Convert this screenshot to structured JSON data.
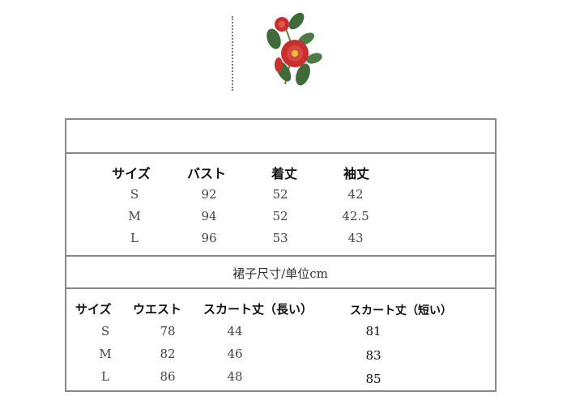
{
  "top_table": {
    "headers": [
      "サイズ",
      "バスト",
      "着丈",
      "袖丈"
    ],
    "rows": [
      [
        "S",
        "92",
        "52",
        "42"
      ],
      [
        "M",
        "94",
        "52",
        "42.5"
      ],
      [
        "L",
        "96",
        "53",
        "43"
      ]
    ]
  },
  "skirt_section": {
    "title": "裙子尺寸/单位cm",
    "headers": [
      "サイズ",
      "ウエスト",
      "スカート丈（長い）",
      "スカート丈（短い）"
    ],
    "rows": [
      [
        "S",
        "78",
        "44",
        "81"
      ],
      [
        "M",
        "82",
        "46",
        "83"
      ],
      [
        "L",
        "86",
        "48",
        "85"
      ]
    ]
  },
  "decoration": {
    "icon": "camellia-flower-icon",
    "flower_color": "#c8302f",
    "leaf_color": "#3f6b3a"
  }
}
